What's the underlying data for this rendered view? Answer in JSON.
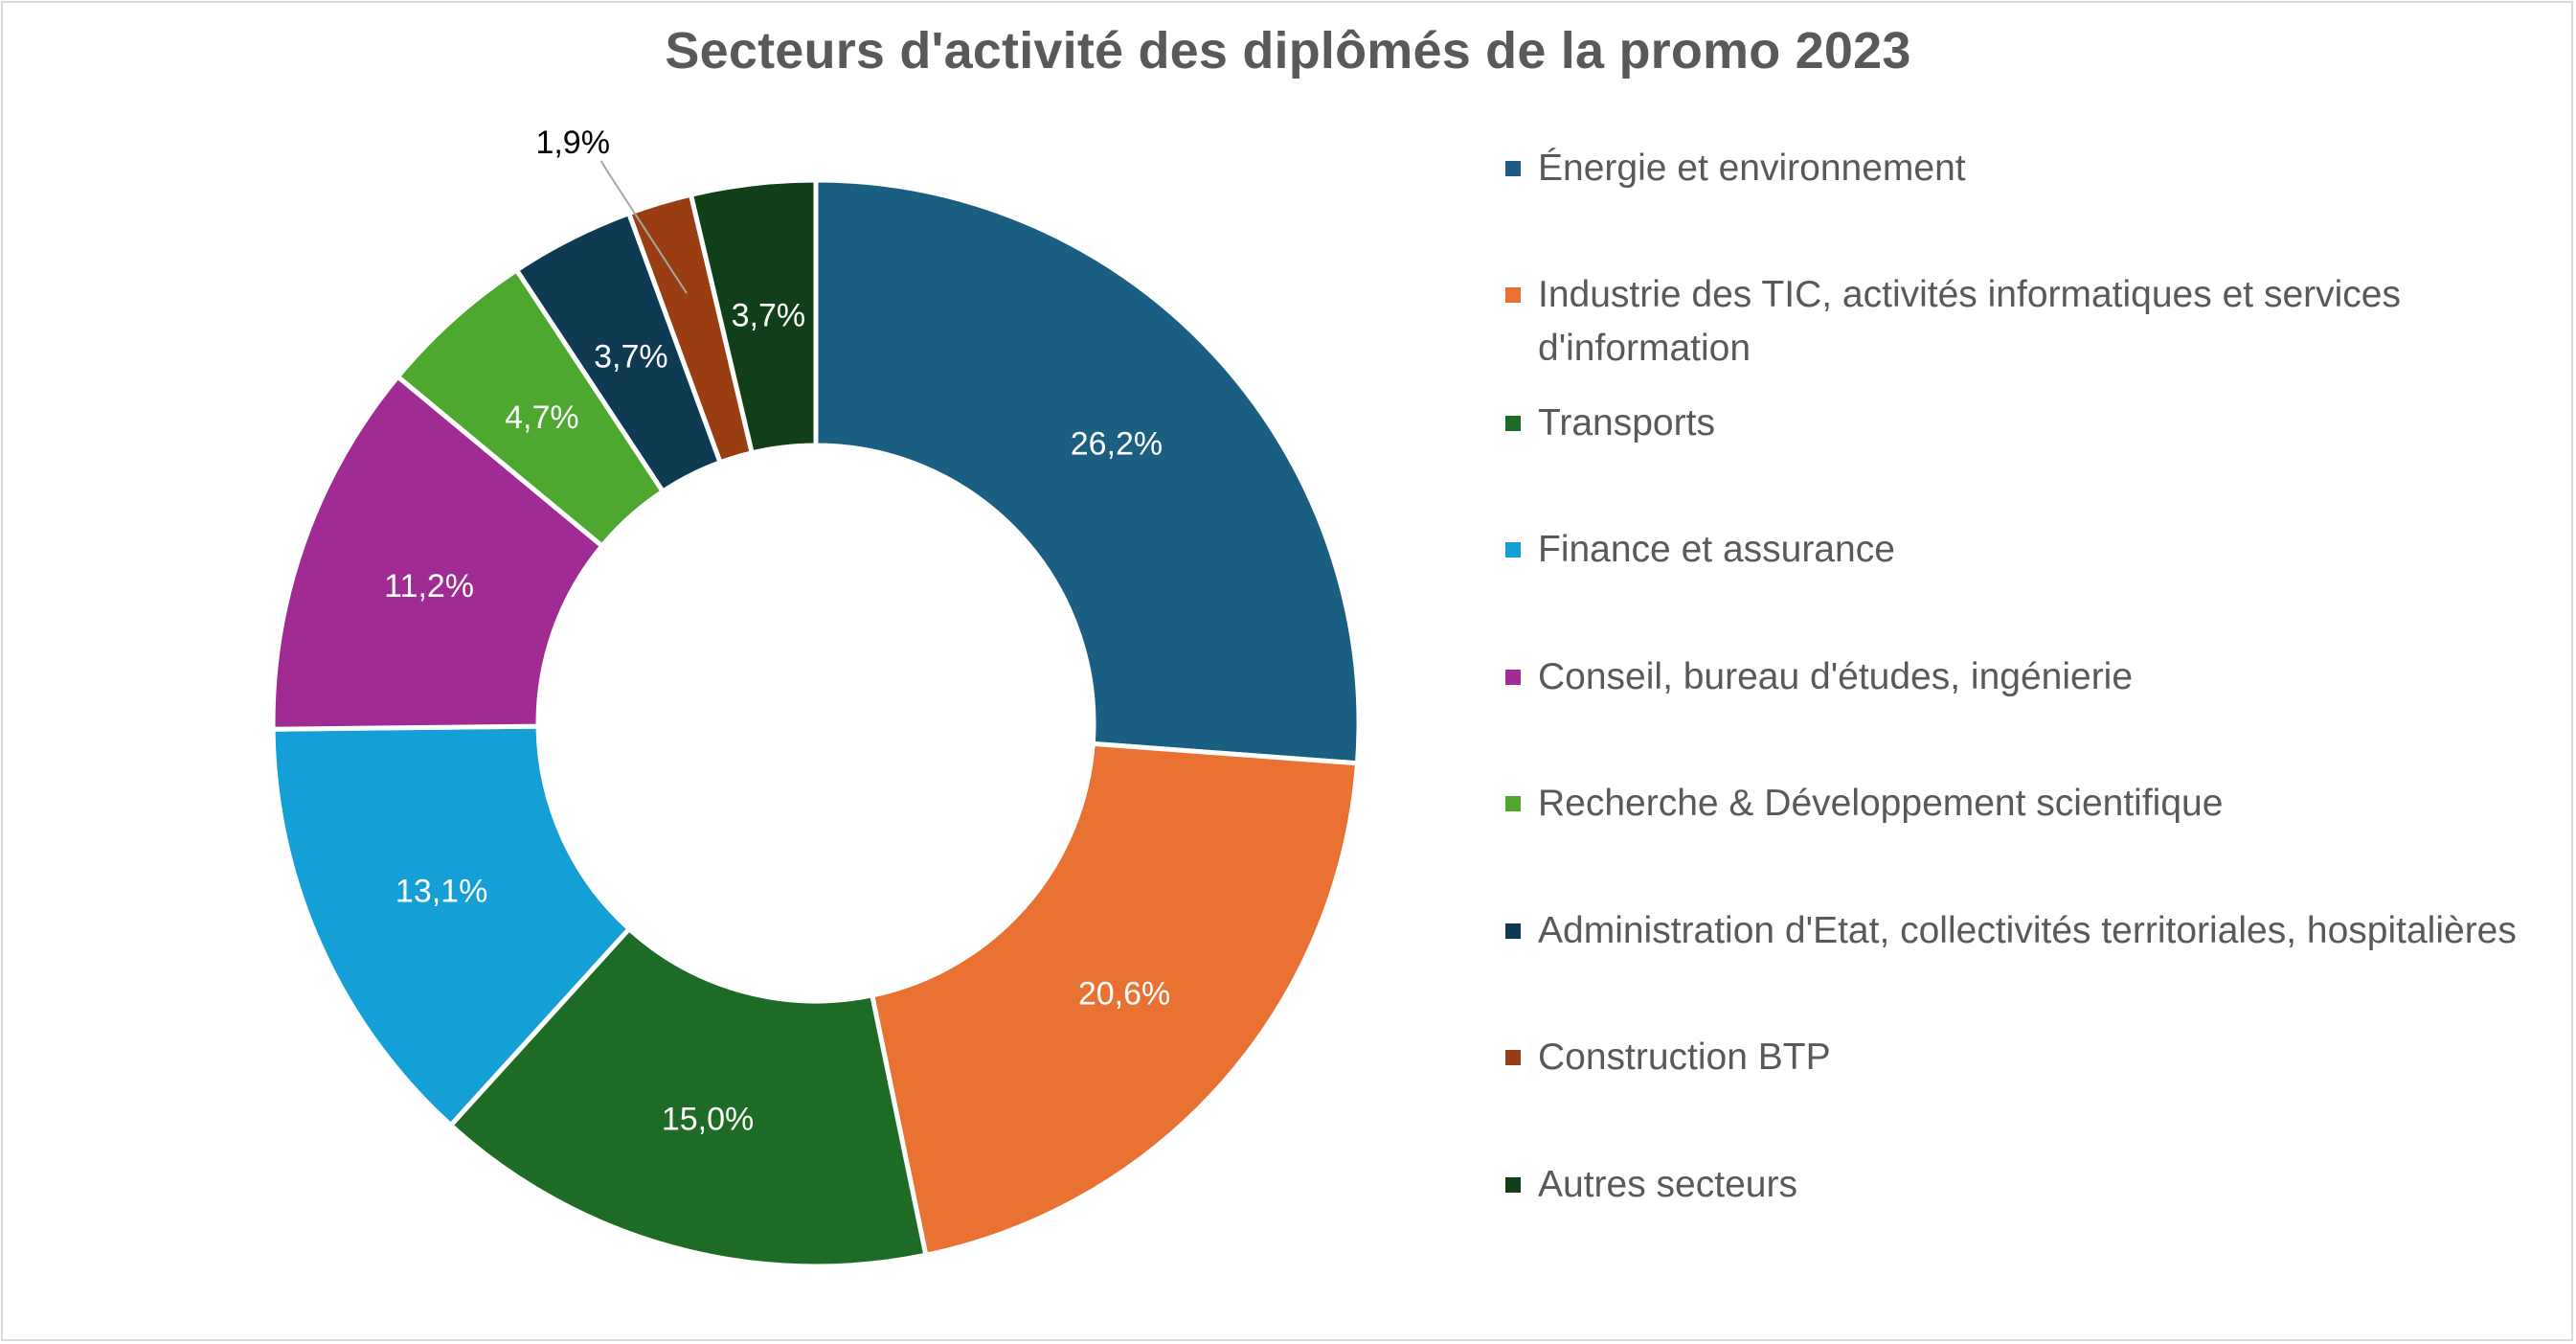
{
  "chart_data": {
    "type": "pie",
    "variant": "donut",
    "title": "Secteurs d'activité des diplômés de la promo 2023",
    "categories": [
      "Énergie et environnement",
      "Industrie des TIC, activités informatiques et services d'information",
      "Transports",
      "Finance et assurance",
      "Conseil, bureau d'études, ingénierie",
      "Recherche & Développement scientifique",
      "Administration d'Etat, collectivités territoriales, hospitalières",
      "Construction BTP",
      "Autres secteurs"
    ],
    "values": [
      26.2,
      20.6,
      15.0,
      13.1,
      11.2,
      4.7,
      3.7,
      1.9,
      3.7
    ],
    "data_labels": [
      "26,2%",
      "20,6%",
      "15,0%",
      "13,1%",
      "11,2%",
      "4,7%",
      "3,7%",
      "1,9%",
      "3,7%"
    ],
    "colors": [
      "#1a5e82",
      "#e97132",
      "#1e6b25",
      "#149fd6",
      "#a02b93",
      "#4ea72e",
      "#0e3a52",
      "#9b3d12",
      "#113f1a"
    ],
    "unit": "%",
    "legend_position": "right"
  }
}
